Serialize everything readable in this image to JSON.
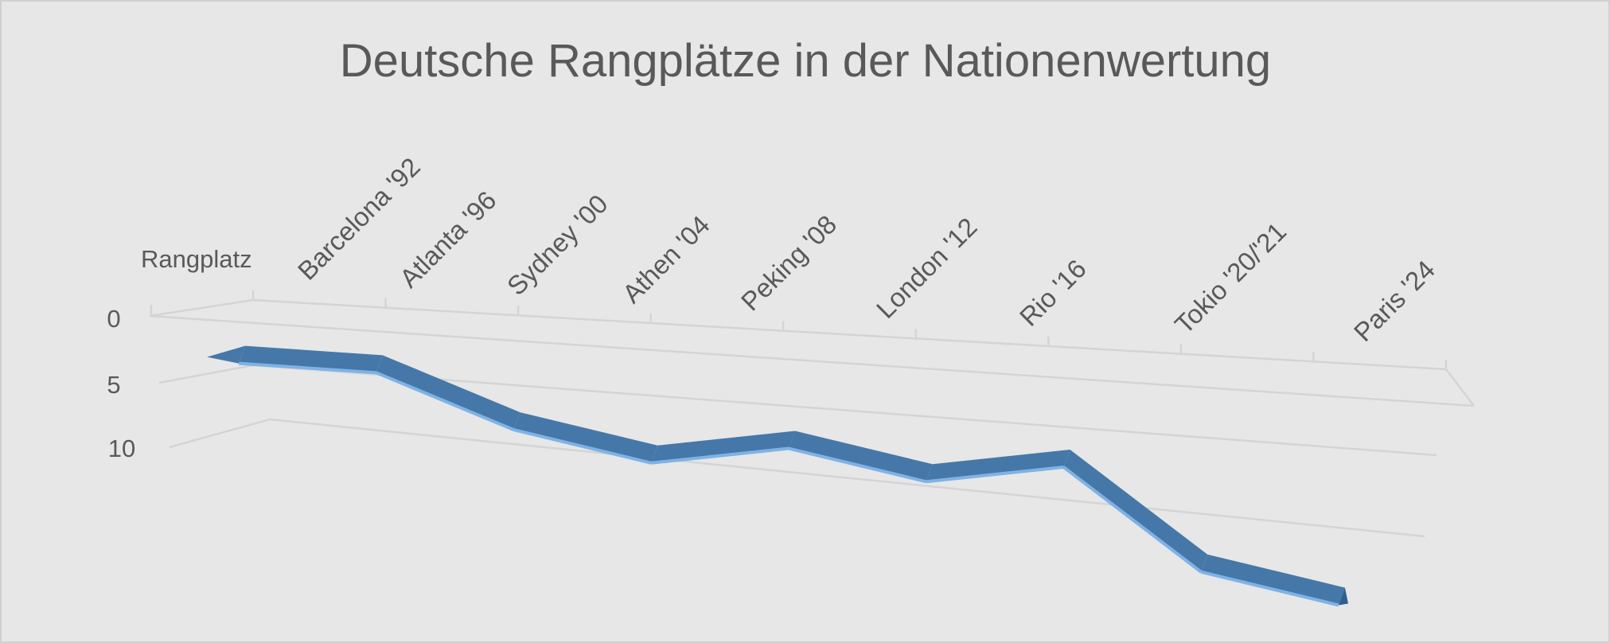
{
  "chart_data": {
    "type": "line",
    "title": "Deutsche Rangplätze in der Nationenwertung",
    "ylabel": "Rangplatz",
    "xlabel": "",
    "categories": [
      "Barcelona '92",
      "Atlanta '96",
      "Sydney '00",
      "Athen '04",
      "Peking '08",
      "London '12",
      "Rio '16",
      "Tokio '20/'21",
      "Paris '24"
    ],
    "series": [
      {
        "values": [
          3,
          3,
          5,
          6,
          5,
          6,
          5,
          9,
          10
        ]
      }
    ],
    "y_ticks": [
      "0",
      "5",
      "10"
    ],
    "ylim": [
      0,
      10
    ],
    "y_reversed": true,
    "style": "3d-ribbon",
    "grid": true,
    "legend": "none",
    "colors": {
      "ribbon_top": "#4578a8",
      "ribbon_front": "#5b9bd5",
      "ribbon_edge": "#7fb2e5",
      "grid": "#d4d4d4",
      "text": "#595959"
    }
  }
}
